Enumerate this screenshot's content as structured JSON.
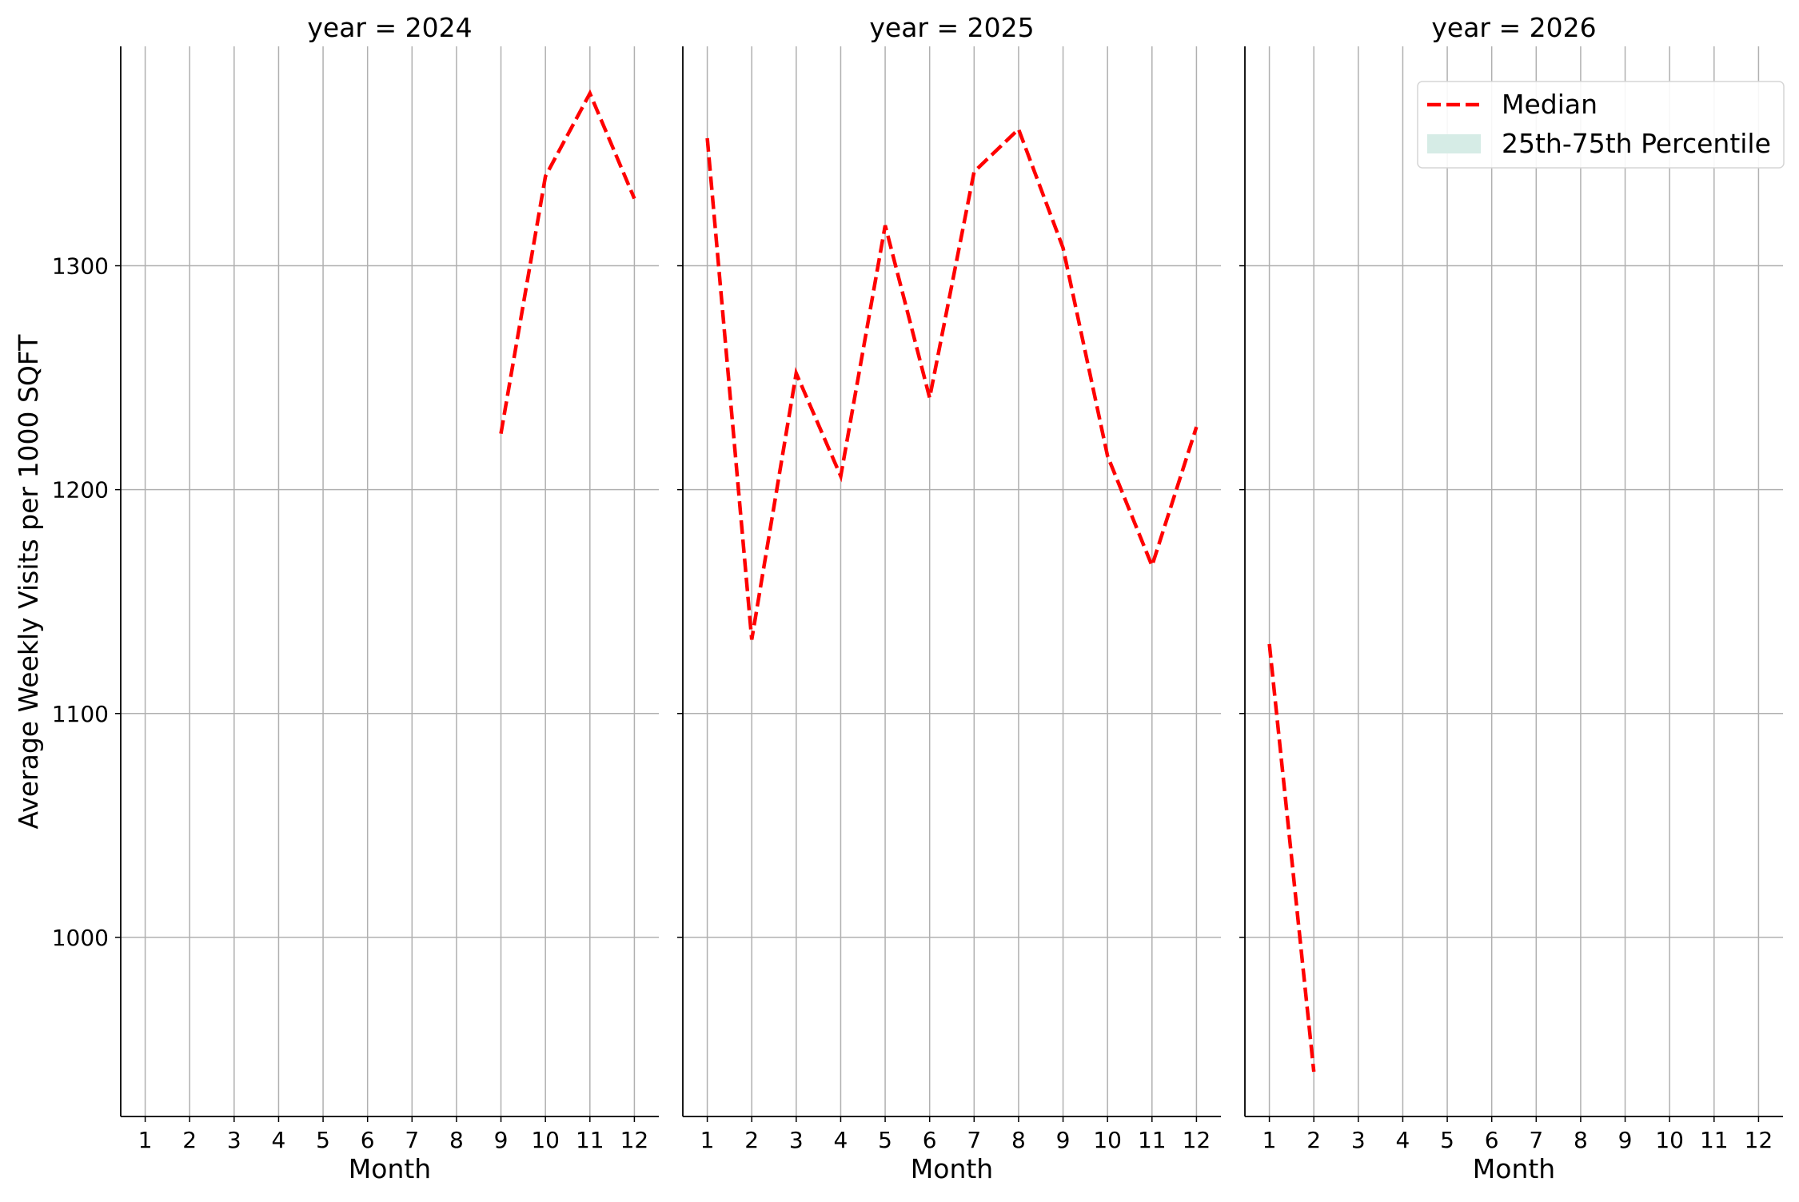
{
  "chart_data": {
    "type": "line",
    "ylabel": "Average Weekly Visits per 1000 SQFT",
    "ylim": [
      920,
      1398
    ],
    "yticks": [
      1000,
      1100,
      1200,
      1300
    ],
    "xlim": [
      0.45,
      12.55
    ],
    "grid": true,
    "colors": {
      "median": "#ff0000",
      "band": "#d6ece6",
      "grid": "#b0b0b0"
    },
    "legend": {
      "placement": "top-right",
      "entries": [
        {
          "label": "Median",
          "style": "dashed-line"
        },
        {
          "label": "25th-75th Percentile",
          "style": "fill"
        }
      ]
    },
    "panels": [
      {
        "title": "year = 2024",
        "xlabel": "Month",
        "x_ticks": [
          1,
          2,
          3,
          4,
          5,
          6,
          7,
          8,
          9,
          10,
          11,
          12
        ],
        "series": [
          {
            "name": "Median",
            "x": [
              9,
              10,
              11,
              12
            ],
            "values": [
              1225,
              1340,
              1377,
              1330
            ]
          }
        ]
      },
      {
        "title": "year = 2025",
        "xlabel": "Month",
        "x_ticks": [
          1,
          2,
          3,
          4,
          5,
          6,
          7,
          8,
          9,
          10,
          11,
          12
        ],
        "series": [
          {
            "name": "Median",
            "x": [
              1,
              2,
              3,
              4,
              5,
              6,
              7,
              8,
              9,
              10,
              11,
              12
            ],
            "values": [
              1357,
              1133,
              1252,
              1206,
              1318,
              1241,
              1342,
              1361,
              1308,
              1215,
              1166,
              1228
            ]
          }
        ]
      },
      {
        "title": "year = 2026",
        "xlabel": "Month",
        "x_ticks": [
          1,
          2,
          3,
          4,
          5,
          6,
          7,
          8,
          9,
          10,
          11,
          12
        ],
        "series": [
          {
            "name": "Median",
            "x": [
              1,
              2
            ],
            "values": [
              1131,
              940
            ]
          }
        ]
      }
    ]
  }
}
